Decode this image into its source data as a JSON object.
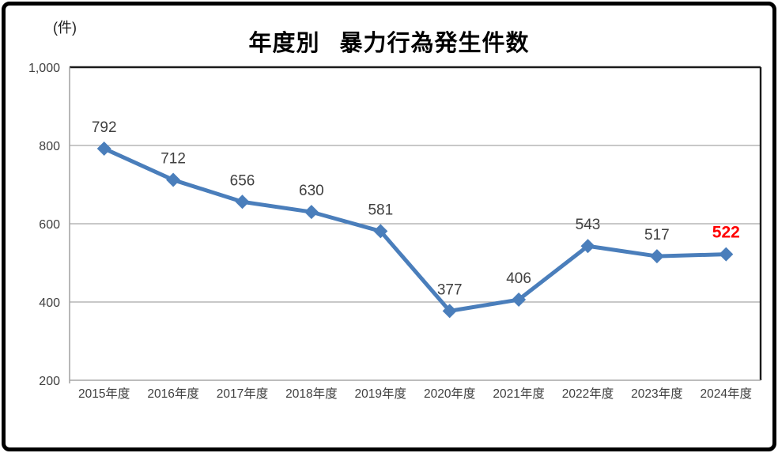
{
  "chart_data": {
    "type": "line",
    "title": "年度別 暴力行為発生件数",
    "unit": "(件)",
    "categories": [
      "2015年度",
      "2016年度",
      "2017年度",
      "2018年度",
      "2019年度",
      "2020年度",
      "2021年度",
      "2022年度",
      "2023年度",
      "2024年度"
    ],
    "series": [
      {
        "name": "暴力行為発生件数",
        "values": [
          792,
          712,
          656,
          630,
          581,
          377,
          406,
          543,
          517,
          522
        ]
      }
    ],
    "ylim": [
      200,
      1000
    ],
    "ytick_step": 200,
    "ytick_labels": [
      "1,000",
      "800",
      "600",
      "400",
      "200"
    ],
    "ytick_values": [
      1000,
      800,
      600,
      400,
      200
    ],
    "grid": true,
    "legend_position": "none",
    "line_color": "#4a7ebb",
    "marker": "diamond",
    "data_label_color": "#404040",
    "tick_label_color": "#404040",
    "gridline_color": "#a6a6a6",
    "axis_color": "#a6a6a6",
    "plot_border_color": "#1a1a1a",
    "highlight": {
      "index": 9,
      "color": "#ff0000",
      "bold": true,
      "label": "522"
    }
  }
}
